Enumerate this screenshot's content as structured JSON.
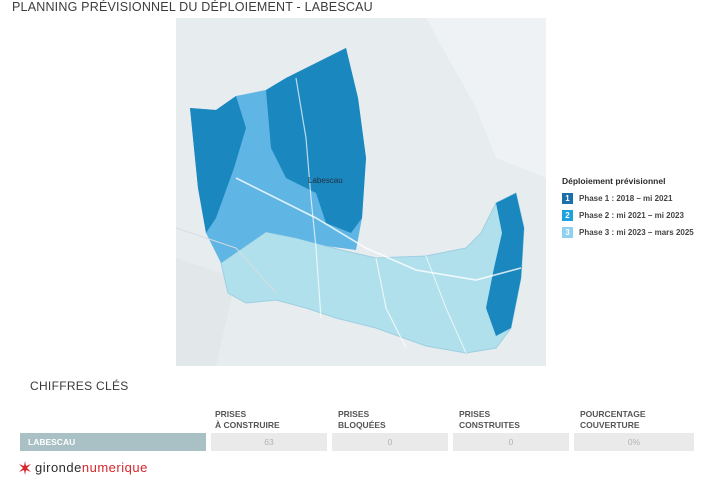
{
  "page": {
    "title": "PLANNING PRÉVISIONNEL DU DÉPLOIEMENT - LABESCAU"
  },
  "map": {
    "place_labels": [
      "Labescau"
    ],
    "colors": {
      "phase1": "#1b87bf",
      "phase2": "#5fb5e3",
      "phase3": "#b1e0ed",
      "background": "#e7ecef"
    }
  },
  "legend": {
    "title": "Déploiement prévisionnel",
    "items": [
      {
        "num": "1",
        "label": "Phase 1 : 2018 – mi 2021",
        "color": "#1b6fa8"
      },
      {
        "num": "2",
        "label": "Phase 2 : mi 2021 – mi 2023",
        "color": "#1ea2dc"
      },
      {
        "num": "3",
        "label": "Phase 3 : mi 2023 – mars 2025",
        "color": "#8dd0ef"
      }
    ]
  },
  "key_figures": {
    "title": "CHIFFRES CLÉS",
    "columns": [
      "PRISES\nÀ CONSTRUIRE",
      "PRISES\nBLOQUÉES",
      "PRISES\nCONSTRUITES",
      "POURCENTAGE\nCOUVERTURE"
    ],
    "row": {
      "label": "LABESCAU",
      "values": [
        "63",
        "0",
        "0",
        "0%"
      ]
    }
  },
  "footer": {
    "logo_text_1": "gironde",
    "logo_text_2": "numerique"
  }
}
